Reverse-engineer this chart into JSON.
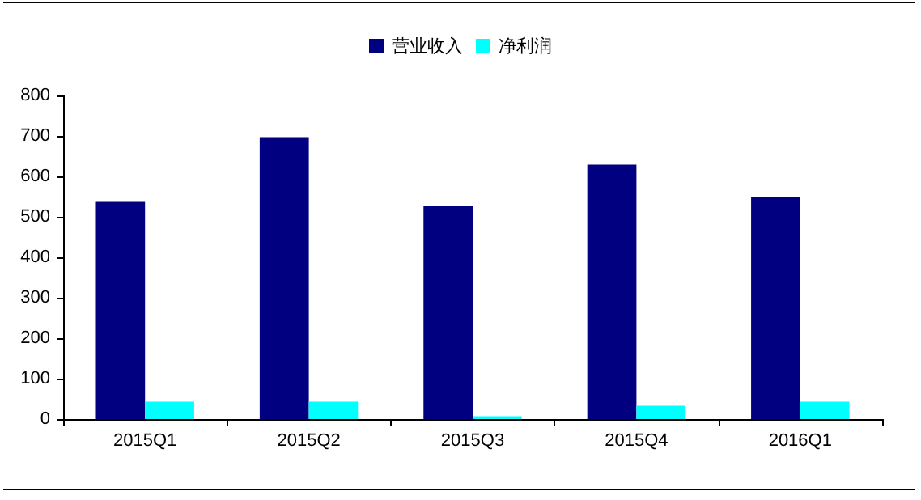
{
  "chart_data": {
    "type": "bar",
    "categories": [
      "2015Q1",
      "2015Q2",
      "2015Q3",
      "2015Q4",
      "2016Q1"
    ],
    "series": [
      {
        "name": "营业收入",
        "color": "#000080",
        "values": [
          537,
          697,
          527,
          629,
          548
        ]
      },
      {
        "name": "净利润",
        "color": "#00ffff",
        "values": [
          43,
          43,
          7,
          33,
          43
        ]
      }
    ],
    "ylim": [
      0,
      800
    ],
    "yticks": [
      0,
      100,
      200,
      300,
      400,
      500,
      600,
      700,
      800
    ],
    "grid": false,
    "legend": "top"
  }
}
